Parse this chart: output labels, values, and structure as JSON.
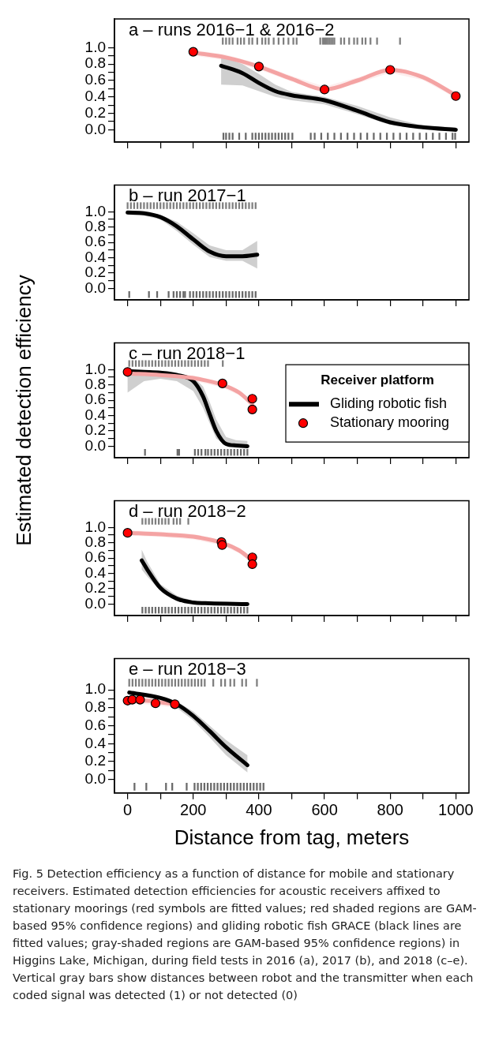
{
  "chart_data": [
    {
      "type": "line",
      "title": "a – runs 2016−1 & 2016−2",
      "xlim": [
        -40,
        1040
      ],
      "xticks": [
        0,
        {
          "value": 100,
          "label": null
        },
        200,
        {
          "value": 300,
          "label": null
        },
        400,
        {
          "value": 500,
          "label": null
        },
        600,
        {
          "value": 700,
          "label": null
        },
        800,
        {
          "value": 900,
          "label": null
        },
        1000
      ],
      "ylim": [
        -0.15,
        1.35
      ],
      "yticks": [
        {
          "value": 0,
          "label": "0.0"
        },
        {
          "value": 0.1,
          "label": null
        },
        {
          "value": 0.2,
          "label": "0.2"
        },
        {
          "value": 0.3,
          "label": null
        },
        {
          "value": 0.4,
          "label": "0.4"
        },
        {
          "value": 0.5,
          "label": null
        },
        {
          "value": 0.6,
          "label": "0.6"
        },
        {
          "value": 0.7,
          "label": null
        },
        {
          "value": 0.8,
          "label": "0.8"
        },
        {
          "value": 0.9,
          "label": null
        },
        {
          "value": 1,
          "label": "1.0"
        }
      ],
      "tick_labels": "y",
      "series": [
        {
          "color": "#f4a3a3",
          "x": [
            200,
            300,
            400,
            500,
            600,
            700,
            800,
            900,
            1000
          ],
          "values": [
            0.94,
            0.88,
            0.77,
            0.62,
            0.49,
            0.6,
            0.73,
            0.64,
            0.42
          ],
          "lower": [
            0.905,
            0.845,
            0.735,
            0.585,
            0.455,
            0.565,
            0.695,
            0.605,
            0.385
          ],
          "upper": [
            0.975,
            0.915,
            0.805,
            0.655,
            0.525,
            0.635,
            0.765,
            0.675,
            0.455
          ]
        },
        {
          "color": "#000000",
          "x": [
            285,
            350,
            400,
            450,
            500,
            600,
            700,
            800,
            900,
            1000
          ],
          "values": [
            0.78,
            0.69,
            0.57,
            0.47,
            0.42,
            0.36,
            0.23,
            0.09,
            0.03,
            0.0
          ],
          "lower": [
            0.55,
            0.54,
            0.47,
            0.4,
            0.36,
            0.31,
            0.19,
            0.06,
            0.01,
            0.0
          ],
          "upper": [
            0.9,
            0.8,
            0.68,
            0.55,
            0.46,
            0.4,
            0.29,
            0.15,
            0.05,
            0.03
          ]
        },
        {
          "type": "scatter",
          "marker": "circle",
          "color": "#ff0000",
          "x": [
            200,
            400,
            600,
            800,
            1000
          ],
          "values": [
            0.95,
            0.77,
            0.49,
            0.73,
            0.41
          ]
        },
        {
          "type": "bar",
          "color": "#7f7f7f",
          "x": [
            290,
            300,
            310,
            320,
            335,
            345,
            355,
            370,
            380,
            395,
            410,
            420,
            430,
            445,
            460,
            475,
            490,
            505,
            515,
            587,
            595,
            600,
            605,
            610,
            615,
            620,
            625,
            630,
            650,
            660,
            675,
            690,
            700,
            715,
            725,
            740,
            760,
            830
          ],
          "base": [
            1.04,
            1.04,
            1.04,
            1.04,
            1.04,
            1.04,
            1.04,
            1.04,
            1.04,
            1.04,
            1.04,
            1.04,
            1.04,
            1.04,
            1.04,
            1.04,
            1.04,
            1.04,
            1.04,
            1.04,
            1.04,
            1.04,
            1.04,
            1.04,
            1.04,
            1.04,
            1.04,
            1.04,
            1.04,
            1.04,
            1.04,
            1.04,
            1.04,
            1.04,
            1.04,
            1.04,
            1.04,
            1.04
          ],
          "values": [
            0.08,
            0.08,
            0.08,
            0.08,
            0.08,
            0.08,
            0.08,
            0.08,
            0.08,
            0.08,
            0.08,
            0.08,
            0.08,
            0.08,
            0.08,
            0.08,
            0.08,
            0.08,
            0.08,
            0.08,
            0.08,
            0.08,
            0.08,
            0.08,
            0.08,
            0.08,
            0.08,
            0.08,
            0.08,
            0.08,
            0.08,
            0.08,
            0.08,
            0.08,
            0.08,
            0.08,
            0.08,
            0.08
          ]
        },
        {
          "type": "bar",
          "color": "#6a6a6a",
          "x": [
            292,
            300,
            310,
            320,
            340,
            360,
            380,
            390,
            400,
            410,
            420,
            430,
            440,
            450,
            460,
            470,
            480,
            490,
            502,
            558,
            570,
            590,
            610,
            630,
            650,
            670,
            690,
            710,
            730,
            750,
            770,
            790,
            810,
            830,
            850,
            870,
            890,
            910,
            930,
            950,
            970,
            990,
            998
          ],
          "base": [
            -0.12,
            -0.12,
            -0.12,
            -0.12,
            -0.12,
            -0.12,
            -0.12,
            -0.12,
            -0.12,
            -0.12,
            -0.12,
            -0.12,
            -0.12,
            -0.12,
            -0.12,
            -0.12,
            -0.12,
            -0.12,
            -0.12,
            -0.12,
            -0.12,
            -0.12,
            -0.12,
            -0.12,
            -0.12,
            -0.12,
            -0.12,
            -0.12,
            -0.12,
            -0.12,
            -0.12,
            -0.12,
            -0.12,
            -0.12,
            -0.12,
            -0.12,
            -0.12,
            -0.12,
            -0.12,
            -0.12,
            -0.12,
            -0.12,
            -0.12
          ],
          "values": [
            0.08,
            0.08,
            0.08,
            0.08,
            0.08,
            0.08,
            0.08,
            0.08,
            0.08,
            0.08,
            0.08,
            0.08,
            0.08,
            0.08,
            0.08,
            0.08,
            0.08,
            0.08,
            0.08,
            0.08,
            0.08,
            0.08,
            0.08,
            0.08,
            0.08,
            0.08,
            0.08,
            0.08,
            0.08,
            0.08,
            0.08,
            0.08,
            0.08,
            0.08,
            0.08,
            0.08,
            0.08,
            0.08,
            0.08,
            0.08,
            0.08,
            0.08,
            0.08
          ]
        }
      ]
    },
    {
      "type": "line",
      "title": "b – run 2017−1",
      "xlim": [
        -40,
        1040
      ],
      "xticks": [
        0,
        {
          "value": 100,
          "label": null
        },
        200,
        {
          "value": 300,
          "label": null
        },
        400,
        {
          "value": 500,
          "label": null
        },
        600,
        {
          "value": 700,
          "label": null
        },
        800,
        {
          "value": 900,
          "label": null
        },
        1000
      ],
      "ylim": [
        -0.15,
        1.35
      ],
      "yticks": [
        {
          "value": 0,
          "label": "0.0"
        },
        {
          "value": 0.1,
          "label": null
        },
        {
          "value": 0.2,
          "label": "0.2"
        },
        {
          "value": 0.3,
          "label": null
        },
        {
          "value": 0.4,
          "label": "0.4"
        },
        {
          "value": 0.5,
          "label": null
        },
        {
          "value": 0.6,
          "label": "0.6"
        },
        {
          "value": 0.7,
          "label": null
        },
        {
          "value": 0.8,
          "label": "0.8"
        },
        {
          "value": 0.9,
          "label": null
        },
        {
          "value": 1,
          "label": "1.0"
        }
      ],
      "tick_labels": "y",
      "series": [
        {
          "color": "#000000",
          "x": [
            0,
            50,
            100,
            150,
            200,
            250,
            300,
            350,
            395
          ],
          "values": [
            0.99,
            0.98,
            0.93,
            0.81,
            0.64,
            0.48,
            0.42,
            0.42,
            0.44
          ],
          "lower": [
            0.96,
            0.95,
            0.9,
            0.75,
            0.57,
            0.41,
            0.36,
            0.36,
            0.26
          ],
          "upper": [
            1.0,
            1.0,
            0.96,
            0.87,
            0.72,
            0.56,
            0.5,
            0.5,
            0.62
          ]
        },
        {
          "type": "bar",
          "color": "#7f7f7f",
          "x": [
            0,
            10,
            20,
            30,
            40,
            50,
            60,
            70,
            80,
            90,
            100,
            110,
            120,
            130,
            140,
            150,
            160,
            170,
            180,
            190,
            200,
            210,
            220,
            230,
            240,
            250,
            260,
            270,
            280,
            290,
            300,
            310,
            320,
            330,
            340,
            350,
            360,
            370,
            380,
            390
          ],
          "base": [
            1.04,
            1.04,
            1.04,
            1.04,
            1.04,
            1.04,
            1.04,
            1.04,
            1.04,
            1.04,
            1.04,
            1.04,
            1.04,
            1.04,
            1.04,
            1.04,
            1.04,
            1.04,
            1.04,
            1.04,
            1.04,
            1.04,
            1.04,
            1.04,
            1.04,
            1.04,
            1.04,
            1.04,
            1.04,
            1.04,
            1.04,
            1.04,
            1.04,
            1.04,
            1.04,
            1.04,
            1.04,
            1.04,
            1.04,
            1.04
          ],
          "values": [
            0.08,
            0.08,
            0.08,
            0.08,
            0.08,
            0.08,
            0.08,
            0.08,
            0.08,
            0.08,
            0.08,
            0.08,
            0.08,
            0.08,
            0.08,
            0.08,
            0.08,
            0.08,
            0.08,
            0.08,
            0.08,
            0.08,
            0.08,
            0.08,
            0.08,
            0.08,
            0.08,
            0.08,
            0.08,
            0.08,
            0.08,
            0.08,
            0.08,
            0.08,
            0.08,
            0.08,
            0.08,
            0.08,
            0.08,
            0.08
          ]
        },
        {
          "type": "bar",
          "color": "#6a6a6a",
          "x": [
            5,
            65,
            90,
            125,
            140,
            150,
            160,
            170,
            175,
            190,
            200,
            210,
            220,
            230,
            240,
            250,
            260,
            270,
            280,
            290,
            300,
            310,
            320,
            330,
            340,
            350,
            360,
            370,
            380,
            390
          ],
          "base": [
            -0.12,
            -0.12,
            -0.12,
            -0.12,
            -0.12,
            -0.12,
            -0.12,
            -0.12,
            -0.12,
            -0.12,
            -0.12,
            -0.12,
            -0.12,
            -0.12,
            -0.12,
            -0.12,
            -0.12,
            -0.12,
            -0.12,
            -0.12,
            -0.12,
            -0.12,
            -0.12,
            -0.12,
            -0.12,
            -0.12,
            -0.12,
            -0.12,
            -0.12,
            -0.12
          ],
          "values": [
            0.08,
            0.08,
            0.08,
            0.08,
            0.08,
            0.08,
            0.08,
            0.08,
            0.08,
            0.08,
            0.08,
            0.08,
            0.08,
            0.08,
            0.08,
            0.08,
            0.08,
            0.08,
            0.08,
            0.08,
            0.08,
            0.08,
            0.08,
            0.08,
            0.08,
            0.08,
            0.08,
            0.08,
            0.08,
            0.08
          ]
        }
      ]
    },
    {
      "type": "line",
      "title": "c – run 2018−1",
      "ylabel": "Estimated detection efficiency",
      "legend": "right",
      "legend_title": "Receiver platform",
      "xlim": [
        -40,
        1040
      ],
      "xticks": [
        0,
        {
          "value": 100,
          "label": null
        },
        200,
        {
          "value": 300,
          "label": null
        },
        400,
        {
          "value": 500,
          "label": null
        },
        600,
        {
          "value": 700,
          "label": null
        },
        800,
        {
          "value": 900,
          "label": null
        },
        1000
      ],
      "ylim": [
        -0.15,
        1.35
      ],
      "yticks": [
        {
          "value": 0,
          "label": "0.0"
        },
        {
          "value": 0.1,
          "label": null
        },
        {
          "value": 0.2,
          "label": "0.2"
        },
        {
          "value": 0.3,
          "label": null
        },
        {
          "value": 0.4,
          "label": "0.4"
        },
        {
          "value": 0.5,
          "label": null
        },
        {
          "value": 0.6,
          "label": "0.6"
        },
        {
          "value": 0.7,
          "label": null
        },
        {
          "value": 0.8,
          "label": "0.8"
        },
        {
          "value": 0.9,
          "label": null
        },
        {
          "value": 1,
          "label": "1.0"
        }
      ],
      "tick_labels": "y",
      "series": [
        {
          "color": "#f4a3a3",
          "x": [
            0,
            100,
            200,
            290,
            340,
            380
          ],
          "values": [
            0.95,
            0.93,
            0.89,
            0.8,
            0.7,
            0.55
          ],
          "lower": [
            0.915,
            0.895,
            0.855,
            0.765,
            0.665,
            0.515
          ],
          "upper": [
            0.985,
            0.965,
            0.925,
            0.835,
            0.735,
            0.585
          ]
        },
        {
          "name": "Gliding robotic fish",
          "color": "#000000",
          "x": [
            0,
            50,
            100,
            150,
            200,
            230,
            250,
            270,
            300,
            330,
            365
          ],
          "values": [
            0.98,
            0.97,
            0.96,
            0.93,
            0.85,
            0.65,
            0.42,
            0.2,
            0.03,
            0.01,
            0.0
          ],
          "lower": [
            0.7,
            0.85,
            0.88,
            0.85,
            0.72,
            0.5,
            0.3,
            0.1,
            0.01,
            0.0,
            0.0
          ],
          "upper": [
            0.99,
            0.98,
            0.97,
            0.96,
            0.9,
            0.78,
            0.58,
            0.35,
            0.12,
            0.08,
            0.07
          ]
        },
        {
          "type": "scatter",
          "name": "Stationary mooring",
          "marker": "circle",
          "color": "#ff0000",
          "x": [
            0,
            289,
            380,
            380
          ],
          "values": [
            0.97,
            0.82,
            0.62,
            0.48
          ]
        },
        {
          "type": "bar",
          "color": "#7f7f7f",
          "x": [
            5,
            15,
            25,
            35,
            45,
            55,
            65,
            75,
            85,
            95,
            105,
            115,
            125,
            135,
            145,
            155,
            165,
            175,
            185,
            195,
            205,
            215,
            225,
            235,
            245,
            290
          ],
          "base": [
            1.04,
            1.04,
            1.04,
            1.04,
            1.04,
            1.04,
            1.04,
            1.04,
            1.04,
            1.04,
            1.04,
            1.04,
            1.04,
            1.04,
            1.04,
            1.04,
            1.04,
            1.04,
            1.04,
            1.04,
            1.04,
            1.04,
            1.04,
            1.04,
            1.04,
            1.04
          ],
          "values": [
            0.08,
            0.08,
            0.08,
            0.08,
            0.08,
            0.08,
            0.08,
            0.08,
            0.08,
            0.08,
            0.08,
            0.08,
            0.08,
            0.08,
            0.08,
            0.08,
            0.08,
            0.08,
            0.08,
            0.08,
            0.08,
            0.08,
            0.08,
            0.08,
            0.08,
            0.08
          ]
        },
        {
          "type": "bar",
          "color": "#6a6a6a",
          "x": [
            53,
            152,
            157,
            205,
            215,
            225,
            237,
            245,
            255,
            265,
            275,
            285,
            295,
            305,
            315,
            325,
            335,
            345,
            355,
            365
          ],
          "base": [
            -0.12,
            -0.12,
            -0.12,
            -0.12,
            -0.12,
            -0.12,
            -0.12,
            -0.12,
            -0.12,
            -0.12,
            -0.12,
            -0.12,
            -0.12,
            -0.12,
            -0.12,
            -0.12,
            -0.12,
            -0.12,
            -0.12,
            -0.12
          ],
          "values": [
            0.08,
            0.08,
            0.08,
            0.08,
            0.08,
            0.08,
            0.08,
            0.08,
            0.08,
            0.08,
            0.08,
            0.08,
            0.08,
            0.08,
            0.08,
            0.08,
            0.08,
            0.08,
            0.08,
            0.08
          ]
        }
      ]
    },
    {
      "type": "line",
      "title": "d – run 2018−2",
      "xlim": [
        -40,
        1040
      ],
      "xticks": [
        0,
        {
          "value": 100,
          "label": null
        },
        200,
        {
          "value": 300,
          "label": null
        },
        400,
        {
          "value": 500,
          "label": null
        },
        600,
        {
          "value": 700,
          "label": null
        },
        800,
        {
          "value": 900,
          "label": null
        },
        1000
      ],
      "ylim": [
        -0.15,
        1.35
      ],
      "yticks": [
        {
          "value": 0,
          "label": "0.0"
        },
        {
          "value": 0.1,
          "label": null
        },
        {
          "value": 0.2,
          "label": "0.2"
        },
        {
          "value": 0.3,
          "label": null
        },
        {
          "value": 0.4,
          "label": "0.4"
        },
        {
          "value": 0.5,
          "label": null
        },
        {
          "value": 0.6,
          "label": "0.6"
        },
        {
          "value": 0.7,
          "label": null
        },
        {
          "value": 0.8,
          "label": "0.8"
        },
        {
          "value": 0.9,
          "label": null
        },
        {
          "value": 1,
          "label": "1.0"
        }
      ],
      "tick_labels": "y",
      "series": [
        {
          "color": "#f4a3a3",
          "x": [
            0,
            100,
            200,
            288,
            340,
            380
          ],
          "values": [
            0.93,
            0.91,
            0.88,
            0.8,
            0.7,
            0.57
          ],
          "lower": [
            0.895,
            0.875,
            0.845,
            0.765,
            0.665,
            0.535
          ],
          "upper": [
            0.965,
            0.945,
            0.915,
            0.835,
            0.735,
            0.605
          ]
        },
        {
          "color": "#000000",
          "x": [
            43,
            60,
            100,
            150,
            200,
            250,
            365
          ],
          "values": [
            0.57,
            0.45,
            0.21,
            0.07,
            0.02,
            0.01,
            0.0
          ],
          "lower": [
            0.45,
            0.36,
            0.17,
            0.04,
            0.01,
            0.0,
            0.0
          ],
          "upper": [
            0.71,
            0.55,
            0.26,
            0.11,
            0.04,
            0.02,
            0.02
          ]
        },
        {
          "type": "scatter",
          "marker": "circle",
          "color": "#ff0000",
          "x": [
            0,
            286,
            288,
            380,
            380
          ],
          "values": [
            0.93,
            0.81,
            0.77,
            0.61,
            0.52
          ]
        },
        {
          "type": "bar",
          "color": "#7f7f7f",
          "x": [
            45,
            55,
            65,
            75,
            85,
            95,
            105,
            115,
            125,
            140,
            150,
            160,
            185
          ],
          "base": [
            1.04,
            1.04,
            1.04,
            1.04,
            1.04,
            1.04,
            1.04,
            1.04,
            1.04,
            1.04,
            1.04,
            1.04,
            1.04
          ],
          "values": [
            0.08,
            0.08,
            0.08,
            0.08,
            0.08,
            0.08,
            0.08,
            0.08,
            0.08,
            0.08,
            0.08,
            0.08,
            0.08
          ]
        },
        {
          "type": "bar",
          "color": "#6a6a6a",
          "x": [
            45,
            55,
            65,
            75,
            85,
            95,
            105,
            115,
            125,
            135,
            145,
            155,
            165,
            175,
            185,
            195,
            205,
            215,
            225,
            235,
            245,
            255,
            265,
            275,
            285,
            295,
            305,
            315,
            325,
            335,
            345,
            355,
            365
          ],
          "base": [
            -0.12,
            -0.12,
            -0.12,
            -0.12,
            -0.12,
            -0.12,
            -0.12,
            -0.12,
            -0.12,
            -0.12,
            -0.12,
            -0.12,
            -0.12,
            -0.12,
            -0.12,
            -0.12,
            -0.12,
            -0.12,
            -0.12,
            -0.12,
            -0.12,
            -0.12,
            -0.12,
            -0.12,
            -0.12,
            -0.12,
            -0.12,
            -0.12,
            -0.12,
            -0.12,
            -0.12,
            -0.12,
            -0.12
          ],
          "values": [
            0.08,
            0.08,
            0.08,
            0.08,
            0.08,
            0.08,
            0.08,
            0.08,
            0.08,
            0.08,
            0.08,
            0.08,
            0.08,
            0.08,
            0.08,
            0.08,
            0.08,
            0.08,
            0.08,
            0.08,
            0.08,
            0.08,
            0.08,
            0.08,
            0.08,
            0.08,
            0.08,
            0.08,
            0.08,
            0.08,
            0.08,
            0.08,
            0.08
          ]
        }
      ]
    },
    {
      "type": "line",
      "title": "e – run 2018−3",
      "xlabel": "Distance from tag, meters",
      "xlim": [
        -40,
        1040
      ],
      "xticks": [
        0,
        {
          "value": 100,
          "label": null
        },
        200,
        {
          "value": 300,
          "label": null
        },
        400,
        {
          "value": 500,
          "label": null
        },
        600,
        {
          "value": 700,
          "label": null
        },
        800,
        {
          "value": 900,
          "label": null
        },
        1000
      ],
      "ylim": [
        -0.15,
        1.35
      ],
      "yticks": [
        {
          "value": 0,
          "label": "0.0"
        },
        {
          "value": 0.1,
          "label": null
        },
        {
          "value": 0.2,
          "label": "0.2"
        },
        {
          "value": 0.3,
          "label": null
        },
        {
          "value": 0.4,
          "label": "0.4"
        },
        {
          "value": 0.5,
          "label": null
        },
        {
          "value": 0.6,
          "label": "0.6"
        },
        {
          "value": 0.7,
          "label": null
        },
        {
          "value": 0.8,
          "label": "0.8"
        },
        {
          "value": 0.9,
          "label": null
        },
        {
          "value": 1,
          "label": "1.0"
        }
      ],
      "annotations": [
        "Fig. 5  Detection efficiency as a function of distance for mobile and stationary receivers. Estimated detection efficiencies for acoustic receivers affixed to stationary moorings (red symbols are fitted values; red shaded regions are GAM-based 95% confidence regions) and gliding robotic fish GRACE (black lines are fitted values; gray-shaded regions are GAM-based 95% confidence regions) in Higgins Lake, Michigan, during field tests in 2016 (a), 2017 (b), and 2018 (c–e). Vertical gray bars show distances between robot and the transmitter when each coded signal was detected (1) or not detected (0)"
      ],
      "series": [
        {
          "color": "#000000",
          "x": [
            5,
            100,
            150,
            200,
            250,
            300,
            365
          ],
          "values": [
            0.97,
            0.91,
            0.84,
            0.71,
            0.54,
            0.36,
            0.16
          ],
          "lower": [
            0.95,
            0.89,
            0.8,
            0.66,
            0.47,
            0.27,
            0.08
          ],
          "upper": [
            0.98,
            0.93,
            0.87,
            0.76,
            0.6,
            0.44,
            0.27
          ]
        },
        {
          "color": "#f4a3a3",
          "x": [
            0,
            50,
            100,
            145
          ],
          "values": [
            0.88,
            0.88,
            0.86,
            0.84
          ],
          "lower": [
            0.84,
            0.84,
            0.82,
            0.8
          ],
          "upper": [
            0.92,
            0.92,
            0.9,
            0.88
          ]
        },
        {
          "type": "scatter",
          "marker": "circle",
          "color": "#ff0000",
          "x": [
            0,
            14,
            38,
            85,
            144
          ],
          "values": [
            0.88,
            0.89,
            0.89,
            0.85,
            0.84
          ]
        },
        {
          "type": "bar",
          "color": "#7f7f7f",
          "x": [
            5,
            15,
            25,
            35,
            45,
            55,
            65,
            75,
            85,
            95,
            105,
            115,
            125,
            135,
            145,
            155,
            165,
            175,
            185,
            195,
            205,
            215,
            225,
            235,
            261,
            285,
            297,
            313,
            325,
            349,
            361,
            394
          ],
          "base": [
            1.04,
            1.04,
            1.04,
            1.04,
            1.04,
            1.04,
            1.04,
            1.04,
            1.04,
            1.04,
            1.04,
            1.04,
            1.04,
            1.04,
            1.04,
            1.04,
            1.04,
            1.04,
            1.04,
            1.04,
            1.04,
            1.04,
            1.04,
            1.04,
            1.04,
            1.04,
            1.04,
            1.04,
            1.04,
            1.04,
            1.04,
            1.04
          ],
          "values": [
            0.08,
            0.08,
            0.08,
            0.08,
            0.08,
            0.08,
            0.08,
            0.08,
            0.08,
            0.08,
            0.08,
            0.08,
            0.08,
            0.08,
            0.08,
            0.08,
            0.08,
            0.08,
            0.08,
            0.08,
            0.08,
            0.08,
            0.08,
            0.08,
            0.08,
            0.08,
            0.08,
            0.08,
            0.08,
            0.08,
            0.08,
            0.08
          ]
        },
        {
          "type": "bar",
          "color": "#6a6a6a",
          "x": [
            21,
            57,
            117,
            136,
            180,
            204,
            214,
            224,
            234,
            244,
            254,
            264,
            274,
            284,
            294,
            304,
            314,
            324,
            334,
            344,
            354,
            364,
            374,
            384,
            394,
            404,
            414
          ],
          "base": [
            -0.12,
            -0.12,
            -0.12,
            -0.12,
            -0.12,
            -0.12,
            -0.12,
            -0.12,
            -0.12,
            -0.12,
            -0.12,
            -0.12,
            -0.12,
            -0.12,
            -0.12,
            -0.12,
            -0.12,
            -0.12,
            -0.12,
            -0.12,
            -0.12,
            -0.12,
            -0.12,
            -0.12,
            -0.12,
            -0.12,
            -0.12
          ],
          "values": [
            0.08,
            0.08,
            0.08,
            0.08,
            0.08,
            0.08,
            0.08,
            0.08,
            0.08,
            0.08,
            0.08,
            0.08,
            0.08,
            0.08,
            0.08,
            0.08,
            0.08,
            0.08,
            0.08,
            0.08,
            0.08,
            0.08,
            0.08,
            0.08,
            0.08,
            0.08,
            0.08
          ]
        }
      ]
    }
  ]
}
